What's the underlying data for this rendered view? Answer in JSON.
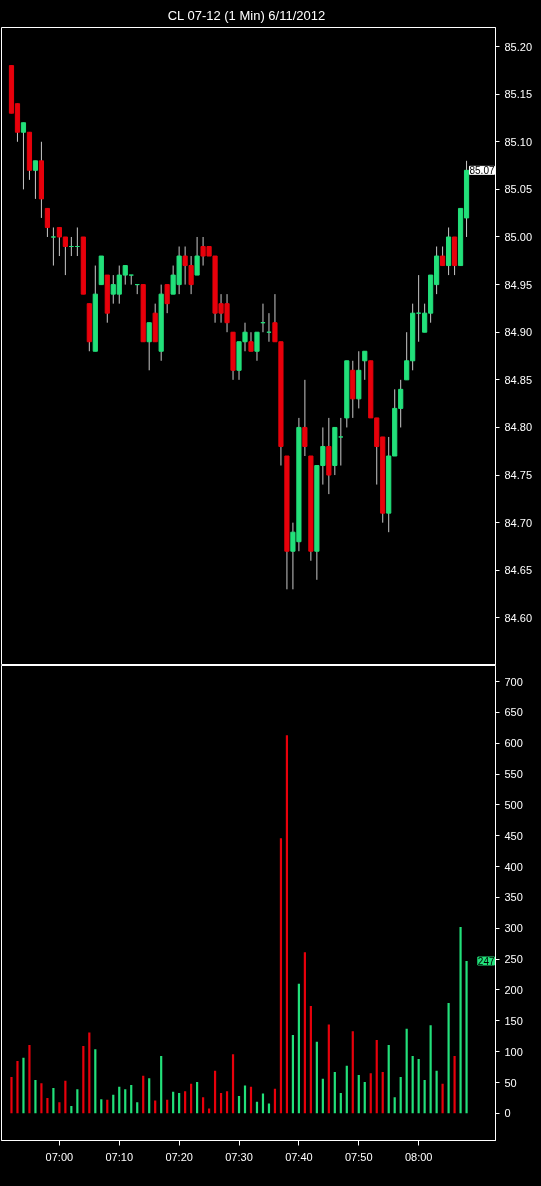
{
  "chart_data": [
    {
      "type": "candlestick",
      "title": "CL 07-12 (1 Min)  6/11/2012",
      "x": [
        "2012-06-11T06:52",
        "2012-06-11T06:53",
        "2012-06-11T06:54",
        "2012-06-11T06:55",
        "2012-06-11T06:56",
        "2012-06-11T06:57",
        "2012-06-11T06:58",
        "2012-06-11T06:59",
        "2012-06-11T07:00",
        "2012-06-11T07:01",
        "2012-06-11T07:02",
        "2012-06-11T07:03",
        "2012-06-11T07:04",
        "2012-06-11T07:05",
        "2012-06-11T07:06",
        "2012-06-11T07:07",
        "2012-06-11T07:08",
        "2012-06-11T07:09",
        "2012-06-11T07:10",
        "2012-06-11T07:11",
        "2012-06-11T07:12",
        "2012-06-11T07:13",
        "2012-06-11T07:14",
        "2012-06-11T07:15",
        "2012-06-11T07:16",
        "2012-06-11T07:17",
        "2012-06-11T07:18",
        "2012-06-11T07:19",
        "2012-06-11T07:20",
        "2012-06-11T07:21",
        "2012-06-11T07:22",
        "2012-06-11T07:23",
        "2012-06-11T07:24",
        "2012-06-11T07:25",
        "2012-06-11T07:26",
        "2012-06-11T07:27",
        "2012-06-11T07:28",
        "2012-06-11T07:29",
        "2012-06-11T07:30",
        "2012-06-11T07:31",
        "2012-06-11T07:32",
        "2012-06-11T07:33",
        "2012-06-11T07:34",
        "2012-06-11T07:35",
        "2012-06-11T07:36",
        "2012-06-11T07:37",
        "2012-06-11T07:38",
        "2012-06-11T07:39",
        "2012-06-11T07:40",
        "2012-06-11T07:41",
        "2012-06-11T07:42",
        "2012-06-11T07:43",
        "2012-06-11T07:44",
        "2012-06-11T07:45",
        "2012-06-11T07:46",
        "2012-06-11T07:47",
        "2012-06-11T07:48",
        "2012-06-11T07:49",
        "2012-06-11T07:50",
        "2012-06-11T07:51",
        "2012-06-11T07:52",
        "2012-06-11T07:53",
        "2012-06-11T07:54",
        "2012-06-11T07:55",
        "2012-06-11T07:56",
        "2012-06-11T07:57",
        "2012-06-11T07:58",
        "2012-06-11T07:59",
        "2012-06-11T08:00",
        "2012-06-11T08:01",
        "2012-06-11T08:02",
        "2012-06-11T08:03",
        "2012-06-11T08:04",
        "2012-06-11T08:05",
        "2012-06-11T08:06",
        "2012-06-11T08:07",
        "2012-06-11T08:08"
      ],
      "ohlc": [
        [
          85.18,
          85.18,
          85.13,
          85.13
        ],
        [
          85.14,
          85.14,
          85.1,
          85.11
        ],
        [
          85.11,
          85.12,
          85.05,
          85.12
        ],
        [
          85.11,
          85.11,
          85.06,
          85.07
        ],
        [
          85.07,
          85.08,
          85.04,
          85.08
        ],
        [
          85.08,
          85.1,
          85.02,
          85.04
        ],
        [
          85.03,
          85.03,
          85.0,
          85.01
        ],
        [
          85.0,
          85.01,
          84.97,
          85.0
        ],
        [
          85.01,
          85.01,
          84.98,
          85.0
        ],
        [
          85.0,
          85.0,
          84.96,
          84.99
        ],
        [
          84.99,
          85.0,
          84.98,
          84.99
        ],
        [
          84.99,
          85.01,
          84.98,
          84.99
        ],
        [
          85.0,
          85.0,
          84.94,
          84.94
        ],
        [
          84.93,
          84.93,
          84.88,
          84.89
        ],
        [
          84.88,
          84.97,
          84.88,
          84.94
        ],
        [
          84.95,
          84.98,
          84.95,
          84.98
        ],
        [
          84.96,
          84.96,
          84.91,
          84.92
        ],
        [
          84.94,
          84.96,
          84.93,
          84.95
        ],
        [
          84.94,
          84.97,
          84.93,
          84.96
        ],
        [
          84.96,
          84.97,
          84.95,
          84.97
        ],
        [
          84.96,
          84.96,
          84.95,
          84.96
        ],
        [
          84.95,
          84.95,
          84.94,
          84.95
        ],
        [
          84.95,
          84.95,
          84.89,
          84.89
        ],
        [
          84.89,
          84.91,
          84.86,
          84.91
        ],
        [
          84.92,
          84.93,
          84.89,
          84.89
        ],
        [
          84.88,
          84.95,
          84.87,
          84.94
        ],
        [
          84.95,
          84.95,
          84.92,
          84.93
        ],
        [
          84.94,
          84.97,
          84.94,
          84.96
        ],
        [
          84.95,
          84.99,
          84.94,
          84.98
        ],
        [
          84.98,
          84.99,
          84.95,
          84.97
        ],
        [
          84.97,
          84.98,
          84.94,
          84.95
        ],
        [
          84.96,
          85.0,
          84.96,
          84.98
        ],
        [
          84.99,
          85.0,
          84.97,
          84.98
        ],
        [
          84.99,
          84.99,
          84.98,
          84.98
        ],
        [
          84.98,
          84.98,
          84.91,
          84.92
        ],
        [
          84.93,
          84.94,
          84.91,
          84.92
        ],
        [
          84.93,
          84.94,
          84.9,
          84.91
        ],
        [
          84.9,
          84.9,
          84.85,
          84.86
        ],
        [
          84.86,
          84.89,
          84.85,
          84.89
        ],
        [
          84.89,
          84.91,
          84.88,
          84.9
        ],
        [
          84.89,
          84.9,
          84.88,
          84.88
        ],
        [
          84.88,
          84.9,
          84.87,
          84.9
        ],
        [
          84.91,
          84.93,
          84.9,
          84.91
        ],
        [
          84.9,
          84.92,
          84.89,
          84.9
        ],
        [
          84.91,
          84.94,
          84.89,
          84.89
        ],
        [
          84.89,
          84.89,
          84.76,
          84.78
        ],
        [
          84.77,
          84.77,
          84.63,
          84.67
        ],
        [
          84.67,
          84.7,
          84.63,
          84.69
        ],
        [
          84.68,
          84.81,
          84.67,
          84.8
        ],
        [
          84.8,
          84.85,
          84.77,
          84.78
        ],
        [
          84.77,
          84.77,
          84.66,
          84.67
        ],
        [
          84.67,
          84.76,
          84.64,
          84.76
        ],
        [
          84.76,
          84.8,
          84.74,
          84.78
        ],
        [
          84.78,
          84.81,
          84.73,
          84.75
        ],
        [
          84.76,
          84.8,
          84.75,
          84.8
        ],
        [
          84.79,
          84.81,
          84.76,
          84.79
        ],
        [
          84.81,
          84.87,
          84.8,
          84.87
        ],
        [
          84.86,
          84.87,
          84.81,
          84.83
        ],
        [
          84.83,
          84.88,
          84.82,
          84.86
        ],
        [
          84.87,
          84.88,
          84.85,
          84.88
        ],
        [
          84.87,
          84.87,
          84.81,
          84.81
        ],
        [
          84.81,
          84.81,
          84.74,
          84.78
        ],
        [
          84.79,
          84.79,
          84.7,
          84.71
        ],
        [
          84.71,
          84.79,
          84.69,
          84.77
        ],
        [
          84.77,
          84.84,
          84.77,
          84.82
        ],
        [
          84.82,
          84.85,
          84.8,
          84.84
        ],
        [
          84.85,
          84.9,
          84.85,
          84.87
        ],
        [
          84.87,
          84.93,
          84.86,
          84.92
        ],
        [
          84.92,
          84.96,
          84.89,
          84.92
        ],
        [
          84.9,
          84.93,
          84.9,
          84.92
        ],
        [
          84.92,
          84.96,
          84.91,
          84.96
        ],
        [
          84.95,
          84.99,
          84.94,
          84.98
        ],
        [
          84.98,
          84.99,
          84.97,
          84.97
        ],
        [
          84.97,
          85.01,
          84.96,
          85.0
        ],
        [
          85.0,
          85.0,
          84.96,
          84.97
        ],
        [
          84.97,
          85.03,
          84.97,
          85.03
        ],
        [
          85.02,
          85.08,
          85.0,
          85.07
        ]
      ],
      "colors": [
        "#e8000b",
        "#e8000b",
        "#22e07a",
        "#e8000b",
        "#22e07a",
        "#e8000b",
        "#e8000b",
        "#22e07a",
        "#e8000b",
        "#e8000b",
        "#22e07a",
        "#22e07a",
        "#e8000b",
        "#e8000b",
        "#22e07a",
        "#22e07a",
        "#e8000b",
        "#22e07a",
        "#22e07a",
        "#22e07a",
        "#22e07a",
        "#22e07a",
        "#e8000b",
        "#22e07a",
        "#e8000b",
        "#22e07a",
        "#e8000b",
        "#22e07a",
        "#22e07a",
        "#e8000b",
        "#e8000b",
        "#22e07a",
        "#e8000b",
        "#e8000b",
        "#e8000b",
        "#e8000b",
        "#e8000b",
        "#e8000b",
        "#22e07a",
        "#22e07a",
        "#e8000b",
        "#22e07a",
        "#22e07a",
        "#22e07a",
        "#e8000b",
        "#e8000b",
        "#e8000b",
        "#22e07a",
        "#22e07a",
        "#e8000b",
        "#e8000b",
        "#22e07a",
        "#22e07a",
        "#e8000b",
        "#22e07a",
        "#22e07a",
        "#22e07a",
        "#e8000b",
        "#22e07a",
        "#22e07a",
        "#e8000b",
        "#e8000b",
        "#e8000b",
        "#22e07a",
        "#22e07a",
        "#22e07a",
        "#22e07a",
        "#22e07a",
        "#22e07a",
        "#22e07a",
        "#22e07a",
        "#22e07a",
        "#e8000b",
        "#22e07a",
        "#e8000b",
        "#22e07a",
        "#22e07a"
      ],
      "xlim": [
        "2012-06-11T06:50:20",
        "2012-06-11T08:12:50"
      ],
      "ylim": [
        84.55,
        85.22
      ],
      "yticks": [
        {
          "value": 84.6,
          "label": "84.60"
        },
        84.65,
        {
          "value": 84.7,
          "label": "84.70"
        },
        84.75,
        {
          "value": 84.8,
          "label": "84.80"
        },
        84.85,
        {
          "value": 84.9,
          "label": "84.90"
        },
        84.95,
        {
          "value": 85.0,
          "label": "85.00"
        },
        85.05,
        {
          "value": 85.1,
          "label": "85.10"
        },
        85.15,
        {
          "value": 85.2,
          "label": "85.20"
        }
      ],
      "tick_labels": "y",
      "annotations": [
        "85.07"
      ]
    },
    {
      "type": "bar",
      "x": [
        "2012-06-11T06:52",
        "2012-06-11T06:53",
        "2012-06-11T06:54",
        "2012-06-11T06:55",
        "2012-06-11T06:56",
        "2012-06-11T06:57",
        "2012-06-11T06:58",
        "2012-06-11T06:59",
        "2012-06-11T07:00",
        "2012-06-11T07:01",
        "2012-06-11T07:02",
        "2012-06-11T07:03",
        "2012-06-11T07:04",
        "2012-06-11T07:05",
        "2012-06-11T07:06",
        "2012-06-11T07:07",
        "2012-06-11T07:08",
        "2012-06-11T07:09",
        "2012-06-11T07:10",
        "2012-06-11T07:11",
        "2012-06-11T07:12",
        "2012-06-11T07:13",
        "2012-06-11T07:14",
        "2012-06-11T07:15",
        "2012-06-11T07:16",
        "2012-06-11T07:17",
        "2012-06-11T07:18",
        "2012-06-11T07:19",
        "2012-06-11T07:20",
        "2012-06-11T07:21",
        "2012-06-11T07:22",
        "2012-06-11T07:23",
        "2012-06-11T07:24",
        "2012-06-11T07:25",
        "2012-06-11T07:26",
        "2012-06-11T07:27",
        "2012-06-11T07:28",
        "2012-06-11T07:29",
        "2012-06-11T07:30",
        "2012-06-11T07:31",
        "2012-06-11T07:32",
        "2012-06-11T07:33",
        "2012-06-11T07:34",
        "2012-06-11T07:35",
        "2012-06-11T07:36",
        "2012-06-11T07:37",
        "2012-06-11T07:38",
        "2012-06-11T07:39",
        "2012-06-11T07:40",
        "2012-06-11T07:41",
        "2012-06-11T07:42",
        "2012-06-11T07:43",
        "2012-06-11T07:44",
        "2012-06-11T07:45",
        "2012-06-11T07:46",
        "2012-06-11T07:47",
        "2012-06-11T07:48",
        "2012-06-11T07:49",
        "2012-06-11T07:50",
        "2012-06-11T07:51",
        "2012-06-11T07:52",
        "2012-06-11T07:53",
        "2012-06-11T07:54",
        "2012-06-11T07:55",
        "2012-06-11T07:56",
        "2012-06-11T07:57",
        "2012-06-11T07:58",
        "2012-06-11T07:59",
        "2012-06-11T08:00",
        "2012-06-11T08:01",
        "2012-06-11T08:02",
        "2012-06-11T08:03",
        "2012-06-11T08:04",
        "2012-06-11T08:05",
        "2012-06-11T08:06",
        "2012-06-11T08:07",
        "2012-06-11T08:08"
      ],
      "values": [
        59,
        85,
        90,
        111,
        54,
        49,
        25,
        41,
        18,
        53,
        12,
        39,
        109,
        131,
        104,
        23,
        22,
        30,
        43,
        39,
        46,
        18,
        61,
        57,
        21,
        93,
        22,
        35,
        33,
        36,
        48,
        51,
        26,
        8,
        69,
        33,
        36,
        96,
        28,
        45,
        43,
        19,
        32,
        16,
        40,
        446,
        613,
        127,
        210,
        261,
        174,
        116,
        56,
        144,
        67,
        33,
        77,
        133,
        62,
        51,
        65,
        119,
        67,
        111,
        26,
        59,
        137,
        93,
        88,
        54,
        143,
        69,
        48,
        179,
        93,
        302,
        247
      ],
      "colors": [
        "#e8000b",
        "#e8000b",
        "#22e07a",
        "#e8000b",
        "#22e07a",
        "#e8000b",
        "#e8000b",
        "#22e07a",
        "#e8000b",
        "#e8000b",
        "#22e07a",
        "#22e07a",
        "#e8000b",
        "#e8000b",
        "#22e07a",
        "#22e07a",
        "#e8000b",
        "#22e07a",
        "#22e07a",
        "#22e07a",
        "#22e07a",
        "#22e07a",
        "#e8000b",
        "#22e07a",
        "#e8000b",
        "#22e07a",
        "#e8000b",
        "#22e07a",
        "#22e07a",
        "#e8000b",
        "#e8000b",
        "#22e07a",
        "#e8000b",
        "#e8000b",
        "#e8000b",
        "#e8000b",
        "#e8000b",
        "#e8000b",
        "#22e07a",
        "#22e07a",
        "#e8000b",
        "#22e07a",
        "#22e07a",
        "#22e07a",
        "#e8000b",
        "#e8000b",
        "#e8000b",
        "#22e07a",
        "#22e07a",
        "#e8000b",
        "#e8000b",
        "#22e07a",
        "#22e07a",
        "#e8000b",
        "#22e07a",
        "#22e07a",
        "#22e07a",
        "#e8000b",
        "#22e07a",
        "#22e07a",
        "#e8000b",
        "#e8000b",
        "#e8000b",
        "#22e07a",
        "#22e07a",
        "#22e07a",
        "#22e07a",
        "#22e07a",
        "#22e07a",
        "#22e07a",
        "#22e07a",
        "#22e07a",
        "#e8000b",
        "#22e07a",
        "#e8000b",
        "#22e07a",
        "#22e07a"
      ],
      "xlim": [
        "2012-06-11T06:50:20",
        "2012-06-11T08:12:50"
      ],
      "xticks": [
        {
          "value": "2012-06-11T07:00",
          "label": "07:00"
        },
        {
          "value": "2012-06-11T07:10",
          "label": "07:10"
        },
        {
          "value": "2012-06-11T07:20",
          "label": "07:20"
        },
        {
          "value": "2012-06-11T07:30",
          "label": "07:30"
        },
        {
          "value": "2012-06-11T07:40",
          "label": "07:40"
        },
        {
          "value": "2012-06-11T07:50",
          "label": "07:50"
        },
        {
          "value": "2012-06-11T08:00",
          "label": "08:00"
        }
      ],
      "ylim": [
        -44,
        726
      ],
      "yticks": [
        0,
        50,
        100,
        150,
        200,
        250,
        300,
        350,
        400,
        450,
        500,
        550,
        600,
        650,
        700
      ],
      "annotations": [
        "247"
      ]
    }
  ]
}
